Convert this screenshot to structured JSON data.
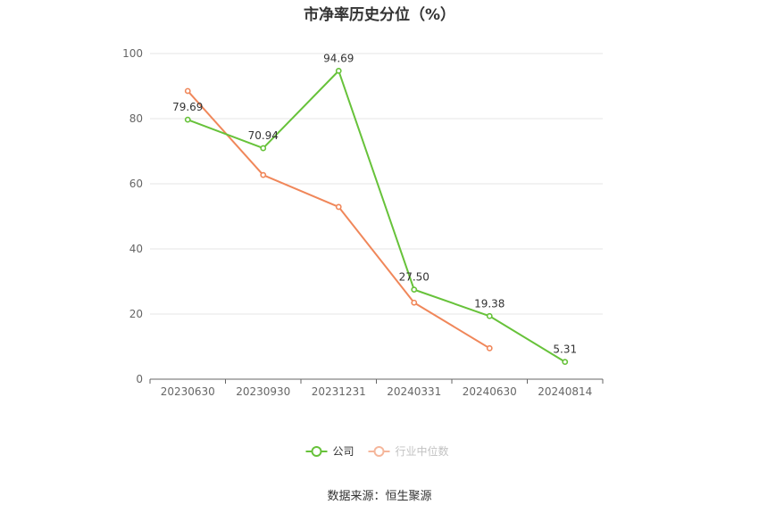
{
  "chart_data": {
    "type": "line",
    "title": "市净率历史分位（%）",
    "categories": [
      "20230630",
      "20230930",
      "20231231",
      "20240331",
      "20240630",
      "20240814"
    ],
    "ylim": [
      0,
      100
    ],
    "yticks": [
      0,
      20,
      40,
      60,
      80,
      100
    ],
    "grid": true,
    "legend_position": "bottom",
    "series": [
      {
        "name": "公司",
        "color": "#67c23a",
        "values": [
          79.69,
          70.94,
          94.69,
          27.5,
          19.38,
          5.31
        ],
        "labels": [
          "79.69",
          "70.94",
          "94.69",
          "27.50",
          "19.38",
          "5.31"
        ]
      },
      {
        "name": "行业中位数",
        "color": "#f0875a",
        "values": [
          88.5,
          62.7,
          52.9,
          23.5,
          9.5,
          null
        ],
        "labels": []
      }
    ]
  },
  "source_text": "数据来源：恒生聚源"
}
